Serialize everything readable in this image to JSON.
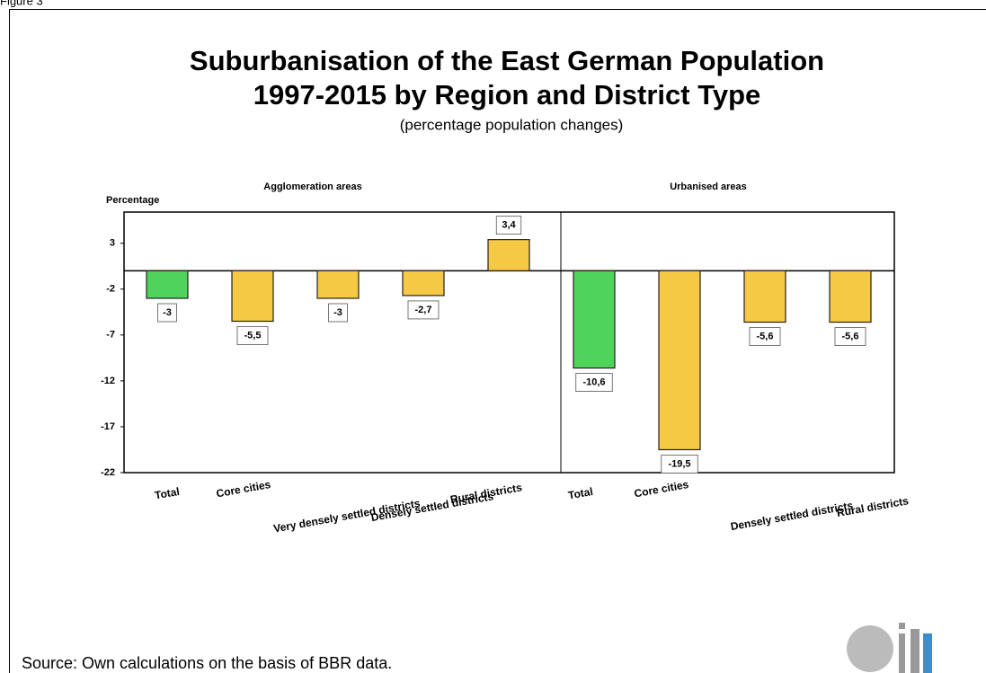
{
  "figure_label": "Figure 3",
  "chart_data": {
    "type": "bar",
    "title": [
      "Suburbanisation of the East German Population",
      "1997-2015 by Region and District Type"
    ],
    "subtitle": "(percentage population changes)",
    "y_label": "Percentage",
    "ylim": [
      -22,
      6.4
    ],
    "yticks": [
      3,
      -2,
      -7,
      -12,
      -17,
      -22
    ],
    "groups": [
      {
        "name": "Agglomeration areas",
        "categories": [
          "Total",
          "Core cities",
          "Very densely settled districts",
          "Densely settled districts",
          "Rural districts"
        ],
        "values": [
          -3,
          -5.5,
          -3,
          -2.7,
          3.4
        ],
        "value_labels": [
          "-3",
          "-5,5",
          "-3",
          "-2,7",
          "3,4"
        ],
        "colors": [
          "#4fd35a",
          "#f6c945",
          "#f6c945",
          "#f6c945",
          "#f6c945"
        ]
      },
      {
        "name": "Urbanised areas",
        "categories": [
          "Total",
          "Core cities",
          "Densely settled districts",
          "Rural districts"
        ],
        "values": [
          -10.6,
          -19.5,
          -5.6,
          -5.6
        ],
        "value_labels": [
          "-10,6",
          "-19,5",
          "-5,6",
          "-5,6"
        ],
        "colors": [
          "#4fd35a",
          "#f6c945",
          "#f6c945",
          "#f6c945"
        ]
      }
    ]
  },
  "source": "Source: Own calculations on the basis of BBR data."
}
